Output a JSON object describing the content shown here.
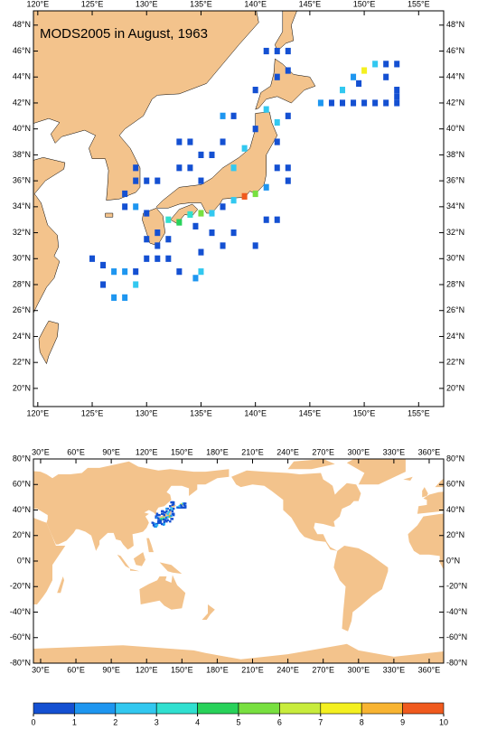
{
  "title": "MODS2005 in August, 1963",
  "regional_map": {
    "xlim": [
      119.6,
      157.3
    ],
    "ylim": [
      18.6,
      49.1
    ],
    "xticks": [
      {
        "value": 120,
        "label": "120°E"
      },
      {
        "value": 125,
        "label": "125°E"
      },
      {
        "value": 130,
        "label": "130°E"
      },
      {
        "value": 135,
        "label": "135°E"
      },
      {
        "value": 140,
        "label": "140°E"
      },
      {
        "value": 145,
        "label": "145°E"
      },
      {
        "value": 150,
        "label": "150°E"
      },
      {
        "value": 155,
        "label": "155°E"
      }
    ],
    "yticks": [
      {
        "value": 20,
        "label": "20°N"
      },
      {
        "value": 22,
        "label": "22°N"
      },
      {
        "value": 24,
        "label": "24°N"
      },
      {
        "value": 26,
        "label": "26°N"
      },
      {
        "value": 28,
        "label": "28°N"
      },
      {
        "value": 30,
        "label": "30°N"
      },
      {
        "value": 32,
        "label": "32°N"
      },
      {
        "value": 34,
        "label": "34°N"
      },
      {
        "value": 36,
        "label": "36°N"
      },
      {
        "value": 38,
        "label": "38°N"
      },
      {
        "value": 40,
        "label": "40°N"
      },
      {
        "value": 42,
        "label": "42°N"
      },
      {
        "value": 44,
        "label": "44°N"
      },
      {
        "value": 46,
        "label": "46°N"
      },
      {
        "value": 48,
        "label": "48°N"
      }
    ],
    "cells": {
      "lon": [
        146,
        147,
        148,
        149,
        150,
        151,
        152,
        153,
        148,
        149,
        150,
        151,
        152,
        153,
        149.5,
        152,
        153,
        153,
        133,
        134,
        135,
        136,
        137,
        133,
        134,
        129,
        130,
        131,
        129,
        138,
        139,
        140,
        135,
        138,
        137,
        128,
        128,
        129,
        130,
        132,
        133,
        134,
        135,
        136,
        137,
        139,
        140,
        141,
        138,
        134.5,
        136,
        138,
        140,
        142,
        141,
        137,
        135,
        135,
        134.5,
        125,
        126,
        127,
        128,
        129,
        130,
        131,
        129,
        128,
        127,
        126,
        131,
        132,
        133,
        130,
        131,
        132,
        142,
        142,
        143,
        143,
        142,
        141,
        143,
        140,
        142,
        143,
        141,
        142,
        143
      ],
      "lat": [
        42,
        42,
        42,
        42,
        42,
        42,
        42,
        42,
        43,
        44,
        44.5,
        45,
        45,
        45,
        43.5,
        44,
        43,
        42.5,
        39,
        39,
        38,
        38,
        39,
        37,
        37,
        36,
        36,
        36,
        37,
        37,
        38.5,
        40,
        36,
        41,
        41,
        35,
        34,
        34,
        33.5,
        33,
        32.8,
        33.4,
        33.5,
        33.5,
        34,
        34.8,
        35,
        35.5,
        34.5,
        32.5,
        32,
        32,
        31,
        33,
        33,
        31,
        30.5,
        29,
        28.5,
        30,
        29.5,
        29,
        29,
        29,
        30,
        30,
        28,
        27,
        27,
        28,
        31,
        30,
        29,
        31.5,
        32,
        31.5,
        39,
        37,
        37,
        36,
        40.5,
        41.5,
        41,
        43,
        44,
        44.5,
        46,
        46,
        46
      ],
      "values": [
        1.5,
        0.5,
        0.5,
        0.5,
        0.5,
        0.5,
        0.5,
        0.5,
        2.5,
        1.5,
        7.5,
        2.5,
        0.5,
        0.5,
        0.5,
        0.5,
        0.5,
        0.5,
        0.5,
        0.5,
        0.5,
        0.5,
        0.5,
        0.5,
        0.5,
        0.5,
        0.5,
        0.5,
        0.5,
        2.5,
        2.5,
        0.5,
        0.5,
        0.5,
        1.5,
        0.5,
        0.5,
        1.5,
        0.5,
        3.5,
        4.5,
        3.5,
        5.5,
        2.5,
        0.5,
        9.5,
        5.5,
        1.5,
        2.5,
        0.5,
        0.5,
        0.5,
        0.5,
        0.5,
        0.5,
        0.5,
        0.5,
        2.5,
        1.5,
        0.5,
        0.5,
        1.5,
        1.5,
        0.5,
        0.5,
        0.5,
        2.5,
        1.5,
        1.5,
        0.5,
        0.5,
        0.5,
        0.5,
        0.5,
        0.5,
        0.5,
        0.5,
        0.5,
        0.5,
        0.5,
        2.5,
        2.5,
        0.5,
        0.5,
        0.5,
        0.5,
        0.5,
        0.5,
        0.5
      ]
    }
  },
  "global_map": {
    "xlim": [
      23.9,
      372.3
    ],
    "ylim": [
      -80,
      80
    ],
    "xticks": [
      {
        "value": 30,
        "label": "30°E"
      },
      {
        "value": 60,
        "label": "60°E"
      },
      {
        "value": 90,
        "label": "90°E"
      },
      {
        "value": 120,
        "label": "120°E"
      },
      {
        "value": 150,
        "label": "150°E"
      },
      {
        "value": 180,
        "label": "180°E"
      },
      {
        "value": 210,
        "label": "210°E"
      },
      {
        "value": 240,
        "label": "240°E"
      },
      {
        "value": 270,
        "label": "270°E"
      },
      {
        "value": 300,
        "label": "300°E"
      },
      {
        "value": 330,
        "label": "330°E"
      },
      {
        "value": 360,
        "label": "360°E"
      }
    ],
    "yticks": [
      {
        "value": -80,
        "label": "-80°N"
      },
      {
        "value": -60,
        "label": "-60°N"
      },
      {
        "value": -40,
        "label": "-40°N"
      },
      {
        "value": -20,
        "label": "-20°N"
      },
      {
        "value": 0,
        "label": "0°N"
      },
      {
        "value": 20,
        "label": "20°N"
      },
      {
        "value": 40,
        "label": "40°N"
      },
      {
        "value": 60,
        "label": "60°N"
      },
      {
        "value": 80,
        "label": "80°N"
      }
    ]
  },
  "colorbar": {
    "ticks": [
      0,
      1,
      2,
      3,
      4,
      5,
      6,
      7,
      8,
      9,
      10
    ],
    "colors": [
      "#1450d2",
      "#1e96f0",
      "#32c8f0",
      "#30e0d0",
      "#28d25a",
      "#78e040",
      "#c8ec3c",
      "#f4f020",
      "#f8b432",
      "#f05a1e"
    ]
  }
}
